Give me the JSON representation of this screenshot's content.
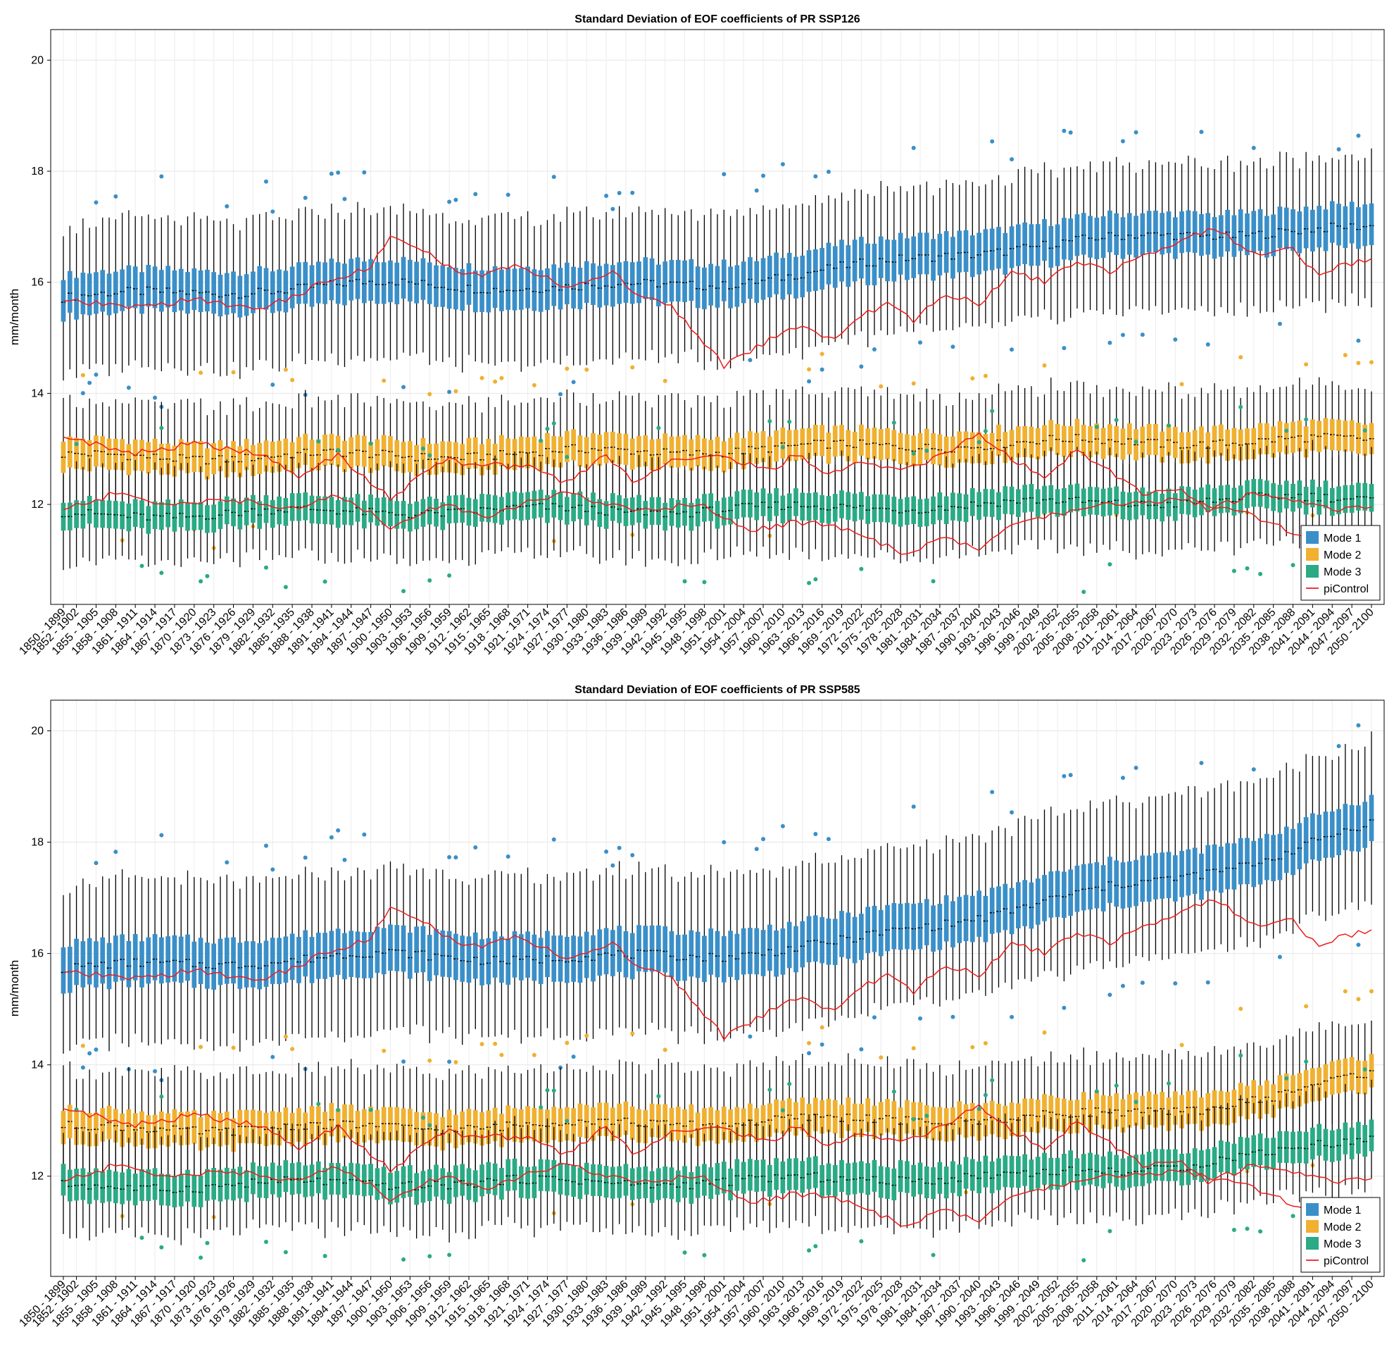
{
  "chart_data": [
    {
      "type": "box",
      "title": "Standard Deviation of EOF coefficients of PR SSP126",
      "xlabel": "",
      "ylabel": "mm/month",
      "ylim": [
        10.2,
        20.55
      ],
      "yticks": [
        12,
        14,
        16,
        18,
        20
      ],
      "grid": true,
      "legend_position": "bottom-right",
      "legend": [
        "Mode 1",
        "Mode 2",
        "Mode 3",
        "piControl"
      ],
      "x_window_start_years": [
        1850,
        2050
      ],
      "x_tick_labels": [
        "1850 - 1899",
        "1852 - 1902",
        "1855 - 1905",
        "1858 - 1908",
        "1861 - 1911",
        "1864 - 1914",
        "1867 - 1917",
        "1870 - 1920",
        "1873 - 1923",
        "1876 - 1926",
        "1879 - 1929",
        "1882 - 1932",
        "1885 - 1935",
        "1888 - 1938",
        "1891 - 1941",
        "1894 - 1944",
        "1897 - 1947",
        "1900 - 1950",
        "1903 - 1953",
        "1906 - 1956",
        "1909 - 1959",
        "1912 - 1962",
        "1915 - 1965",
        "1918 - 1968",
        "1921 - 1971",
        "1924 - 1974",
        "1927 - 1977",
        "1930 - 1980",
        "1933 - 1983",
        "1936 - 1986",
        "1939 - 1989",
        "1942 - 1992",
        "1945 - 1995",
        "1948 - 1998",
        "1951 - 2001",
        "1954 - 2004",
        "1957 - 2007",
        "1960 - 2010",
        "1963 - 2013",
        "1966 - 2016",
        "1969 - 2019",
        "1972 - 2022",
        "1975 - 2025",
        "1978 - 2028",
        "1981 - 2031",
        "1984 - 2034",
        "1987 - 2037",
        "1990 - 2040",
        "1993 - 2043",
        "1996 - 2046",
        "1999 - 2049",
        "2002 - 2052",
        "2005 - 2055",
        "2008 - 2058",
        "2011 - 2061",
        "2014 - 2064",
        "2017 - 2067",
        "2020 - 2070",
        "2023 - 2073",
        "2026 - 2076",
        "2029 - 2079",
        "2032 - 2082",
        "2035 - 2085",
        "2038 - 2088",
        "2041 - 2091",
        "2044 - 2094",
        "2047 - 2097",
        "2050 - 2100"
      ],
      "series": [
        {
          "name": "Mode 1",
          "color": "#3a8fc8",
          "median_keyframes": {
            "x": [
              1850,
              1870,
              1900,
              1930,
              1950,
              1970,
              1985,
              2000,
              2020,
              2035,
              2050
            ],
            "y": [
              15.72,
              15.82,
              15.97,
              15.9,
              15.98,
              16.25,
              16.5,
              16.68,
              16.85,
              16.92,
              16.95
            ]
          },
          "q1_offset": -0.35,
          "q3_offset": 0.4,
          "lower_whisker_offset": -1.35,
          "upper_whisker_offset": 1.3
        },
        {
          "name": "Mode 2",
          "color": "#f0b030",
          "median_keyframes": {
            "x": [
              1850,
              1900,
              1950,
              2000,
              2050
            ],
            "y": [
              12.85,
              12.88,
              12.98,
              13.12,
              13.15
            ]
          },
          "q1_offset": -0.28,
          "q3_offset": 0.28,
          "lower_whisker_offset": -0.95,
          "upper_whisker_offset": 0.95
        },
        {
          "name": "Mode 3",
          "color": "#2aaa85",
          "median_keyframes": {
            "x": [
              1850,
              1900,
              1950,
              2000,
              2050
            ],
            "y": [
              11.8,
              11.88,
              11.9,
              12.02,
              12.12
            ]
          },
          "q1_offset": -0.25,
          "q3_offset": 0.25,
          "lower_whisker_offset": -0.85,
          "upper_whisker_offset": 0.85
        },
        {
          "name": "piControl",
          "color": "#ee1c1c",
          "type": "line",
          "upper_keyframes": {
            "x": [
              1850,
              1862,
              1870,
              1880,
              1888,
              1897,
              1900,
              1906,
              1912,
              1920,
              1927,
              1934,
              1937,
              1943,
              1948,
              1951,
              1957,
              1962,
              1968,
              1972,
              1976,
              1980,
              1985,
              1990,
              1995,
              2000,
              2005,
              2010,
              2015,
              2020,
              2026,
              2032,
              2038,
              2042,
              2045,
              2050
            ],
            "y": [
              15.65,
              15.55,
              15.7,
              15.5,
              15.9,
              16.3,
              16.8,
              16.5,
              16.1,
              16.3,
              15.9,
              16.2,
              15.8,
              15.6,
              14.9,
              14.5,
              14.9,
              15.2,
              15.0,
              15.4,
              15.6,
              15.3,
              15.8,
              15.6,
              16.2,
              16.0,
              16.4,
              16.2,
              16.5,
              16.7,
              17.0,
              16.5,
              16.6,
              16.1,
              16.3,
              16.4
            ]
          },
          "mid_keyframes": {
            "x": [
              1850,
              1860,
              1870,
              1880,
              1886,
              1892,
              1900,
              1908,
              1915,
              1920,
              1927,
              1933,
              1937,
              1943,
              1948,
              1953,
              1958,
              1962,
              1967,
              1972,
              1978,
              1985,
              1990,
              1995,
              2000,
              2005,
              2010,
              2015,
              2020,
              2025,
              2032,
              2040,
              2045,
              2050
            ],
            "y": [
              13.25,
              12.9,
              13.1,
              12.9,
              12.5,
              12.9,
              12.1,
              12.8,
              12.7,
              12.7,
              12.4,
              12.9,
              12.4,
              12.8,
              12.9,
              12.8,
              12.6,
              12.9,
              12.5,
              12.8,
              12.6,
              12.9,
              13.3,
              12.8,
              12.5,
              13.0,
              12.6,
              12.2,
              12.3,
              11.9,
              12.2,
              12.0,
              11.9,
              12.0
            ]
          },
          "lower_keyframes": {
            "x": [
              1850,
              1858,
              1865,
              1875,
              1886,
              1892,
              1900,
              1908,
              1915,
              1920,
              1927,
              1937,
              1948,
              1955,
              1962,
              1968,
              1975,
              1978,
              1985,
              1990,
              1995,
              2000,
              2010,
              2020,
              2030,
              2038,
              2045,
              2050
            ],
            "y": [
              11.9,
              12.2,
              12.0,
              12.1,
              11.9,
              12.2,
              11.6,
              12.0,
              11.8,
              12.0,
              12.2,
              11.9,
              12.0,
              11.5,
              11.7,
              11.6,
              11.3,
              11.1,
              11.4,
              11.2,
              11.6,
              11.8,
              12.0,
              12.1,
              11.9,
              11.5,
              11.3,
              11.2
            ]
          }
        }
      ]
    },
    {
      "type": "box",
      "title": "Standard Deviation of EOF coefficients of PR SSP585",
      "xlabel": "",
      "ylabel": "mm/month",
      "ylim": [
        10.2,
        20.55
      ],
      "yticks": [
        12,
        14,
        16,
        18,
        20
      ],
      "grid": true,
      "legend_position": "bottom-right",
      "legend": [
        "Mode 1",
        "Mode 2",
        "Mode 3",
        "piControl"
      ],
      "x_window_start_years": [
        1850,
        2050
      ],
      "x_tick_labels": [
        "1850 - 1899",
        "1852 - 1902",
        "1855 - 1905",
        "1858 - 1908",
        "1861 - 1911",
        "1864 - 1914",
        "1867 - 1917",
        "1870 - 1920",
        "1873 - 1923",
        "1876 - 1926",
        "1879 - 1929",
        "1882 - 1932",
        "1885 - 1935",
        "1888 - 1938",
        "1891 - 1941",
        "1894 - 1944",
        "1897 - 1947",
        "1900 - 1950",
        "1903 - 1953",
        "1906 - 1956",
        "1909 - 1959",
        "1912 - 1962",
        "1915 - 1965",
        "1918 - 1968",
        "1921 - 1971",
        "1924 - 1974",
        "1927 - 1977",
        "1930 - 1980",
        "1933 - 1983",
        "1936 - 1986",
        "1939 - 1989",
        "1942 - 1992",
        "1945 - 1995",
        "1948 - 1998",
        "1951 - 2001",
        "1954 - 2004",
        "1957 - 2007",
        "1960 - 2010",
        "1963 - 2013",
        "1966 - 2016",
        "1969 - 2019",
        "1972 - 2022",
        "1975 - 2025",
        "1978 - 2028",
        "1981 - 2031",
        "1984 - 2034",
        "1987 - 2037",
        "1990 - 2040",
        "1993 - 2043",
        "1996 - 2046",
        "1999 - 2049",
        "2002 - 2052",
        "2005 - 2055",
        "2008 - 2058",
        "2011 - 2061",
        "2014 - 2064",
        "2017 - 2067",
        "2020 - 2070",
        "2023 - 2073",
        "2026 - 2076",
        "2029 - 2079",
        "2032 - 2082",
        "2035 - 2085",
        "2038 - 2088",
        "2041 - 2091",
        "2044 - 2094",
        "2047 - 2097",
        "2050 - 2100"
      ],
      "series": [
        {
          "name": "Mode 1",
          "color": "#3a8fc8",
          "median_keyframes": {
            "x": [
              1850,
              1870,
              1900,
              1930,
              1950,
              1970,
              1985,
              2000,
              2020,
              2035,
              2050
            ],
            "y": [
              15.72,
              15.82,
              15.97,
              15.9,
              15.98,
              16.2,
              16.55,
              16.95,
              17.35,
              17.75,
              18.3
            ]
          },
          "q1_offset": -0.38,
          "q3_offset": 0.45,
          "lower_whisker_offset": -1.4,
          "upper_whisker_offset": 1.5
        },
        {
          "name": "Mode 2",
          "color": "#f0b030",
          "median_keyframes": {
            "x": [
              1850,
              1900,
              1950,
              2000,
              2020,
              2035,
              2050
            ],
            "y": [
              12.85,
              12.88,
              12.98,
              13.05,
              13.2,
              13.4,
              13.85
            ]
          },
          "q1_offset": -0.3,
          "q3_offset": 0.3,
          "lower_whisker_offset": -0.95,
          "upper_whisker_offset": 1.0
        },
        {
          "name": "Mode 3",
          "color": "#2aaa85",
          "median_keyframes": {
            "x": [
              1850,
              1900,
              1950,
              2000,
              2020,
              2035,
              2050
            ],
            "y": [
              11.8,
              11.88,
              11.9,
              12.02,
              12.2,
              12.4,
              12.7
            ]
          },
          "q1_offset": -0.27,
          "q3_offset": 0.3,
          "lower_whisker_offset": -0.85,
          "upper_whisker_offset": 0.95
        },
        {
          "name": "piControl",
          "color": "#ee1c1c",
          "type": "line",
          "upper_keyframes": {
            "x": [
              1850,
              1862,
              1870,
              1880,
              1888,
              1897,
              1900,
              1906,
              1912,
              1920,
              1927,
              1934,
              1937,
              1943,
              1948,
              1951,
              1957,
              1962,
              1968,
              1972,
              1976,
              1980,
              1985,
              1990,
              1995,
              2000,
              2005,
              2010,
              2015,
              2020,
              2026,
              2032,
              2038,
              2042,
              2045,
              2050
            ],
            "y": [
              15.65,
              15.55,
              15.7,
              15.5,
              15.9,
              16.3,
              16.8,
              16.5,
              16.1,
              16.3,
              15.9,
              16.2,
              15.8,
              15.6,
              14.9,
              14.5,
              14.9,
              15.2,
              15.0,
              15.4,
              15.6,
              15.3,
              15.8,
              15.6,
              16.2,
              16.0,
              16.4,
              16.2,
              16.5,
              16.7,
              17.0,
              16.5,
              16.6,
              16.1,
              16.3,
              16.4
            ]
          },
          "mid_keyframes": {
            "x": [
              1850,
              1860,
              1870,
              1880,
              1886,
              1892,
              1900,
              1908,
              1915,
              1920,
              1927,
              1933,
              1937,
              1943,
              1948,
              1953,
              1958,
              1962,
              1967,
              1972,
              1978,
              1985,
              1990,
              1995,
              2000,
              2005,
              2010,
              2015,
              2020,
              2025,
              2032,
              2040,
              2045,
              2050
            ],
            "y": [
              13.25,
              12.9,
              13.1,
              12.9,
              12.5,
              12.9,
              12.1,
              12.8,
              12.7,
              12.7,
              12.4,
              12.9,
              12.4,
              12.8,
              12.9,
              12.8,
              12.6,
              12.9,
              12.5,
              12.8,
              12.6,
              12.9,
              13.3,
              12.8,
              12.5,
              13.0,
              12.6,
              12.2,
              12.3,
              11.9,
              12.2,
              12.0,
              11.9,
              12.0
            ]
          },
          "lower_keyframes": {
            "x": [
              1850,
              1858,
              1865,
              1875,
              1886,
              1892,
              1900,
              1908,
              1915,
              1920,
              1927,
              1937,
              1948,
              1955,
              1962,
              1968,
              1975,
              1978,
              1985,
              1990,
              1995,
              2000,
              2010,
              2020,
              2030,
              2038,
              2045,
              2050
            ],
            "y": [
              11.9,
              12.2,
              12.0,
              12.1,
              11.9,
              12.2,
              11.6,
              12.0,
              11.8,
              12.0,
              12.2,
              11.9,
              12.0,
              11.5,
              11.7,
              11.6,
              11.3,
              11.1,
              11.4,
              11.2,
              11.6,
              11.8,
              12.0,
              12.1,
              11.9,
              11.5,
              11.3,
              11.2
            ]
          }
        }
      ]
    }
  ]
}
